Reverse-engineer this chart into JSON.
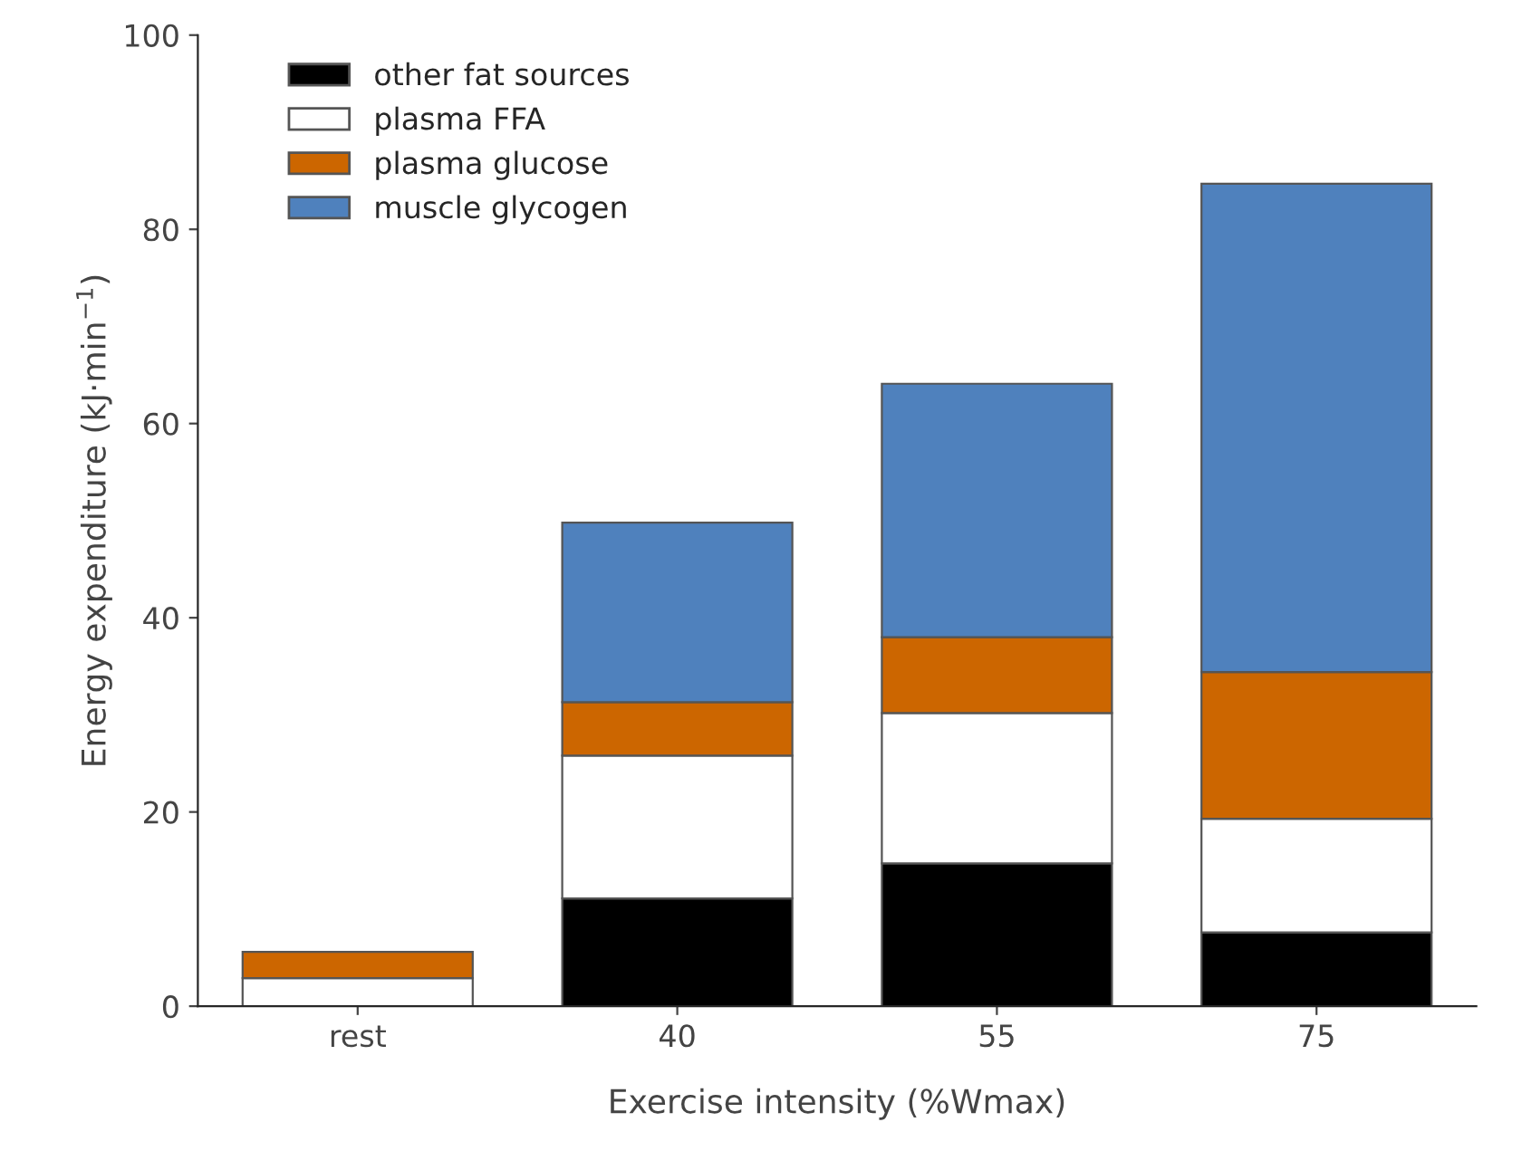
{
  "chart_data": {
    "type": "bar",
    "stacked": true,
    "xlabel": "Exercise intensity (%Wmax)",
    "ylabel": "Energy expenditure (kJ·min$^{−1}$)",
    "categories": [
      "rest",
      "40",
      "55",
      "75"
    ],
    "series": [
      {
        "name": "other fat sources",
        "color": "#000000",
        "values": [
          null,
          11.1,
          14.7,
          7.6
        ]
      },
      {
        "name": "plasma FFA",
        "color": "#ffffff",
        "values": [
          2.9,
          14.7,
          15.5,
          11.7
        ]
      },
      {
        "name": "plasma glucose",
        "color": "#cc6600",
        "values": [
          2.7,
          5.5,
          7.8,
          15.1
        ]
      },
      {
        "name": "muscle glycogen",
        "color": "#4f81bd",
        "values": [
          null,
          18.5,
          26.1,
          50.3
        ]
      }
    ],
    "ylim": [
      0,
      100
    ],
    "yticks": [
      0,
      20,
      40,
      60,
      80,
      100
    ],
    "grid": false,
    "legend": "top left"
  }
}
